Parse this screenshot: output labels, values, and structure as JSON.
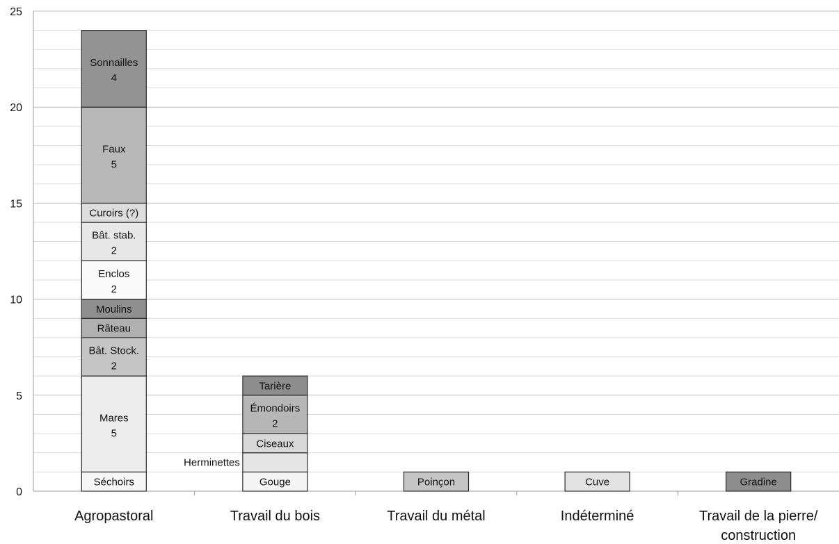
{
  "chart_data": {
    "type": "bar",
    "stacked": true,
    "categories": [
      "Agropastoral",
      "Travail du bois",
      "Travail du métal",
      "Indéterminé",
      "Travail de la pierre/ construction"
    ],
    "category_lines": [
      [
        "Agropastoral"
      ],
      [
        "Travail du bois"
      ],
      [
        "Travail du métal"
      ],
      [
        "Indéterminé"
      ],
      [
        "Travail de la pierre/",
        "construction"
      ]
    ],
    "ylim": [
      0,
      25
    ],
    "y_ticks": [
      0,
      5,
      10,
      15,
      20,
      25
    ],
    "y_minor_step": 1,
    "grid": true,
    "legend": "none",
    "title": "",
    "xlabel": "",
    "ylabel": "",
    "stacks": [
      {
        "category": "Agropastoral",
        "segments": [
          {
            "label": "Séchoirs",
            "value": 1,
            "value_label": "",
            "color": "#f7f7f7"
          },
          {
            "label": "Mares",
            "value": 5,
            "value_label": "5",
            "color": "#ececec"
          },
          {
            "label": "Bât. Stock.",
            "value": 2,
            "value_label": "2",
            "color": "#c5c5c5"
          },
          {
            "label": "Râteau",
            "value": 1,
            "value_label": "",
            "color": "#b0b0b0"
          },
          {
            "label": "Moulins",
            "value": 1,
            "value_label": "",
            "color": "#8f8f8f"
          },
          {
            "label": "Enclos",
            "value": 2,
            "value_label": "2",
            "color": "#fafafa"
          },
          {
            "label": "Bât. stab.",
            "value": 2,
            "value_label": "2",
            "color": "#e8e8e8"
          },
          {
            "label": "Curoirs (?)",
            "value": 1,
            "value_label": "",
            "color": "#dddddd"
          },
          {
            "label": "Faux",
            "value": 5,
            "value_label": "5",
            "color": "#b8b8b8"
          },
          {
            "label": "Sonnailles",
            "value": 4,
            "value_label": "4",
            "color": "#939393"
          }
        ]
      },
      {
        "category": "Travail du bois",
        "segments": [
          {
            "label": "Gouge",
            "value": 1,
            "value_label": "",
            "color": "#f5f5f5"
          },
          {
            "label": "Herminettes",
            "value": 1,
            "value_label": "",
            "color": "#e6e6e6",
            "label_outside": true
          },
          {
            "label": "Ciseaux",
            "value": 1,
            "value_label": "",
            "color": "#d8d8d8"
          },
          {
            "label": "Émondoirs",
            "value": 2,
            "value_label": "2",
            "color": "#b6b6b6"
          },
          {
            "label": "Tarière",
            "value": 1,
            "value_label": "",
            "color": "#8d8d8d"
          }
        ]
      },
      {
        "category": "Travail du métal",
        "segments": [
          {
            "label": "Poinçon",
            "value": 1,
            "value_label": "",
            "color": "#c6c6c6"
          }
        ]
      },
      {
        "category": "Indéterminé",
        "segments": [
          {
            "label": "Cuve",
            "value": 1,
            "value_label": "",
            "color": "#e3e3e3"
          }
        ]
      },
      {
        "category": "Travail de la pierre/ construction",
        "segments": [
          {
            "label": "Gradine",
            "value": 1,
            "value_label": "",
            "color": "#8e8e8e"
          }
        ]
      }
    ]
  }
}
